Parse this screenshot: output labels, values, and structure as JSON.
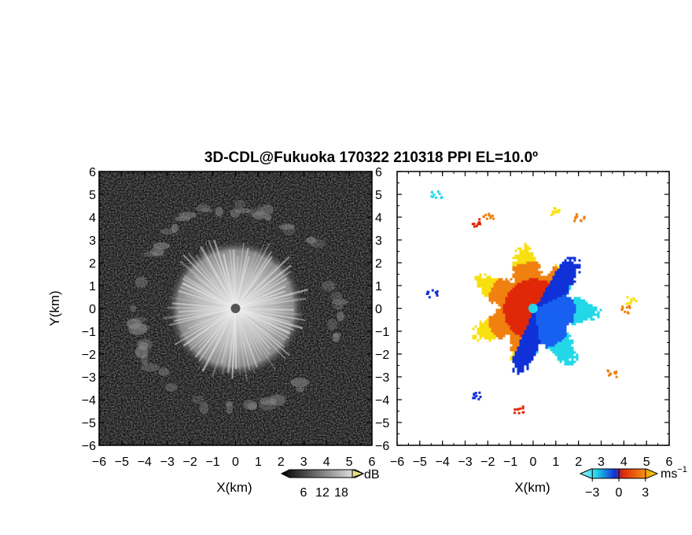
{
  "chart_data": [
    {
      "type": "heatmap",
      "title": "3D-CDL@Fukuoka 170322 210318 PPI EL=10.0º",
      "xlabel": "X(km)",
      "ylabel": "Y(km)",
      "xlim": [
        -6,
        6
      ],
      "ylim": [
        -6,
        6
      ],
      "x_ticks": [
        "-6",
        "-5",
        "-4",
        "-3",
        "-2",
        "-1",
        "0",
        "1",
        "2",
        "3",
        "4",
        "5",
        "6"
      ],
      "y_ticks": [
        "6",
        "5",
        "4",
        "3",
        "2",
        "1",
        "0",
        "-1",
        "-2",
        "-3",
        "-4",
        "-5",
        "-6"
      ],
      "colorbar": {
        "label": "dB",
        "ticks": [
          6,
          12,
          18
        ],
        "colormap": "grayscale"
      },
      "features": {
        "bright_core_radius_km": 3.0,
        "ring_radius_km": 4.4,
        "center_km": [
          0,
          0
        ]
      }
    },
    {
      "type": "heatmap",
      "xlabel": "X(km)",
      "xlim": [
        -6,
        6
      ],
      "ylim": [
        -6,
        6
      ],
      "x_ticks": [
        "-6",
        "-5",
        "-4",
        "-3",
        "-2",
        "-1",
        "0",
        "1",
        "2",
        "3",
        "4",
        "5",
        "6"
      ],
      "y_ticks": [
        "6",
        "5",
        "4",
        "3",
        "2",
        "1",
        "0",
        "-1",
        "-2",
        "-3",
        "-4",
        "-5",
        "-6"
      ],
      "colorbar": {
        "label": "ms",
        "label_sup": "−1",
        "ticks": [
          -3,
          0,
          3
        ],
        "colormap": "cyan-blue-red-orange-yellow"
      },
      "features": {
        "data_radius_km": 3.0,
        "center_km": [
          0,
          0
        ]
      }
    }
  ],
  "colors": {
    "frame": "#000000",
    "background": "#ffffff",
    "neg_cyan": "#22d8e8",
    "neg_blue": "#1030d8",
    "pos_red": "#e02808",
    "pos_orange": "#f08010",
    "pos_yellow": "#f8e010"
  }
}
